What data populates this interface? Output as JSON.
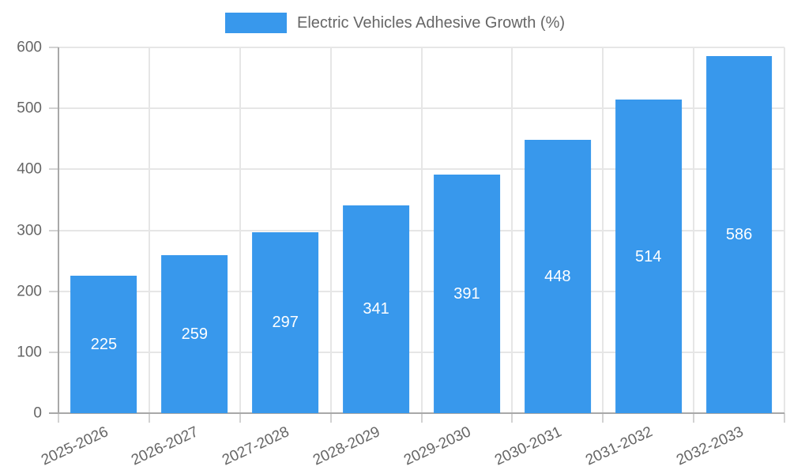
{
  "chart_data": {
    "type": "bar",
    "title": "Electric Vehicles Adhesive Growth (%)",
    "legend_position": "top",
    "categories": [
      "2025-2026",
      "2026-2027",
      "2027-2028",
      "2028-2029",
      "2029-2030",
      "2030-2031",
      "2031-2032",
      "2032-2033"
    ],
    "series": [
      {
        "name": "Electric Vehicles Adhesive Growth (%)",
        "values": [
          225,
          259,
          297,
          341,
          391,
          448,
          514,
          586
        ]
      }
    ],
    "xlabel": "",
    "ylabel": "",
    "ylim": [
      0,
      600
    ],
    "yticks": [
      0,
      100,
      200,
      300,
      400,
      500,
      600
    ],
    "grid": true,
    "x_tick_rotation_deg": -25,
    "colors": {
      "bar": "#3898EC",
      "value_label": "#FFFFFF",
      "axis_text": "#666666",
      "grid_line": "#E6E6E6",
      "axis_line": "#A8A8A8",
      "tick_mark": "#D2D2D2",
      "background": "#FFFFFF"
    }
  }
}
